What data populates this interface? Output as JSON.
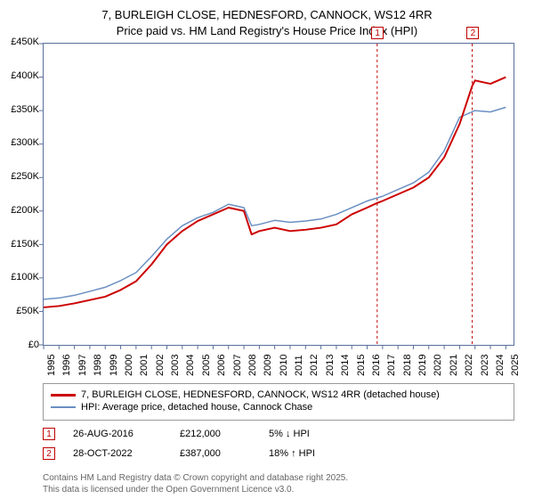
{
  "title_line1": "7, BURLEIGH CLOSE, HEDNESFORD, CANNOCK, WS12 4RR",
  "title_line2": "Price paid vs. HM Land Registry's House Price Index (HPI)",
  "chart": {
    "type": "line",
    "xlim": [
      1995,
      2025.5
    ],
    "ylim": [
      0,
      450000
    ],
    "ytick_step": 50000,
    "yticks": [
      "£0",
      "£50K",
      "£100K",
      "£150K",
      "£200K",
      "£250K",
      "£300K",
      "£350K",
      "£400K",
      "£450K"
    ],
    "xticks": [
      1995,
      1996,
      1997,
      1998,
      1999,
      2000,
      2001,
      2002,
      2003,
      2004,
      2005,
      2006,
      2007,
      2008,
      2009,
      2010,
      2011,
      2012,
      2013,
      2014,
      2015,
      2016,
      2017,
      2018,
      2019,
      2020,
      2021,
      2022,
      2023,
      2024,
      2025
    ],
    "background_color": "#ffffff",
    "border_color": "#5a6f9c",
    "series": [
      {
        "name": "7, BURLEIGH CLOSE, HEDNESFORD, CANNOCK, WS12 4RR (detached house)",
        "color": "#cc0000",
        "line_width": 2,
        "data_x": [
          1995,
          1996,
          1997,
          1998,
          1999,
          2000,
          2001,
          2002,
          2003,
          2004,
          2005,
          2006,
          2007,
          2008,
          2008.5,
          2009,
          2010,
          2011,
          2012,
          2013,
          2014,
          2015,
          2016,
          2016.65,
          2017,
          2018,
          2019,
          2020,
          2021,
          2022,
          2022.82,
          2023,
          2024,
          2025
        ],
        "data_y": [
          56000,
          58000,
          62000,
          67000,
          72000,
          82000,
          95000,
          120000,
          150000,
          170000,
          185000,
          195000,
          205000,
          200000,
          165000,
          170000,
          175000,
          170000,
          172000,
          175000,
          180000,
          195000,
          205000,
          212000,
          215000,
          225000,
          235000,
          250000,
          280000,
          330000,
          387000,
          395000,
          390000,
          400000
        ]
      },
      {
        "name": "HPI: Average price, detached house, Cannock Chase",
        "color": "#6a8fc2",
        "line_width": 1.5,
        "data_x": [
          1995,
          1996,
          1997,
          1998,
          1999,
          2000,
          2001,
          2002,
          2003,
          2004,
          2005,
          2006,
          2007,
          2008,
          2008.5,
          2009,
          2010,
          2011,
          2012,
          2013,
          2014,
          2015,
          2016,
          2017,
          2018,
          2019,
          2020,
          2021,
          2022,
          2023,
          2024,
          2025
        ],
        "data_y": [
          68000,
          70000,
          74000,
          80000,
          86000,
          96000,
          108000,
          132000,
          158000,
          178000,
          190000,
          198000,
          210000,
          205000,
          178000,
          180000,
          186000,
          183000,
          185000,
          188000,
          195000,
          205000,
          215000,
          222000,
          232000,
          242000,
          258000,
          290000,
          340000,
          350000,
          348000,
          355000
        ]
      }
    ],
    "markers": [
      {
        "n": "1",
        "x_year": 2016.65,
        "date": "26-AUG-2016",
        "price": "£212,000",
        "delta": "5% ↓ HPI"
      },
      {
        "n": "2",
        "x_year": 2022.82,
        "date": "28-OCT-2022",
        "price": "£387,000",
        "delta": "18% ↑ HPI"
      }
    ],
    "marker_color": "#c00000"
  },
  "legend": {
    "series1": "7, BURLEIGH CLOSE, HEDNESFORD, CANNOCK, WS12 4RR (detached house)",
    "series2": "HPI: Average price, detached house, Cannock Chase"
  },
  "fineprint_line1": "Contains HM Land Registry data © Crown copyright and database right 2025.",
  "fineprint_line2": "This data is licensed under the Open Government Licence v3.0.",
  "colors": {
    "series1": "#cc0000",
    "series2": "#6a8fc2",
    "marker": "#c00000",
    "fine": "#666666"
  }
}
